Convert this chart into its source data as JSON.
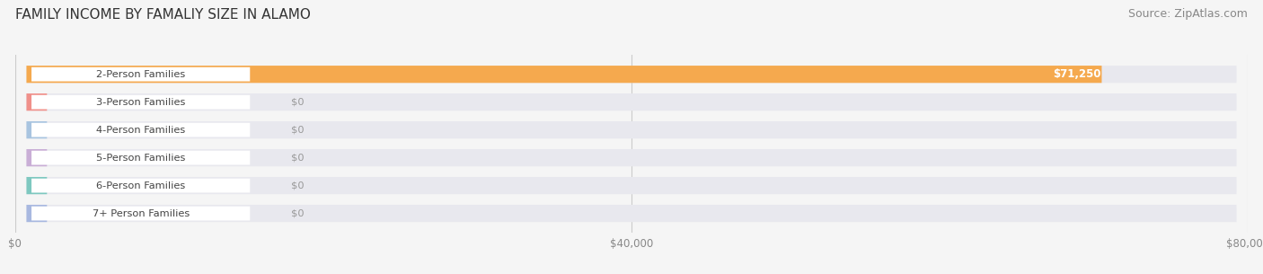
{
  "title": "FAMILY INCOME BY FAMALIY SIZE IN ALAMO",
  "source": "Source: ZipAtlas.com",
  "categories": [
    "2-Person Families",
    "3-Person Families",
    "4-Person Families",
    "5-Person Families",
    "6-Person Families",
    "7+ Person Families"
  ],
  "values": [
    71250,
    0,
    0,
    0,
    0,
    0
  ],
  "bar_colors": [
    "#f5a94e",
    "#f0908a",
    "#a8c4e0",
    "#c9aed6",
    "#7ec8c0",
    "#a8b8e0"
  ],
  "value_labels": [
    "$71,250",
    "$0",
    "$0",
    "$0",
    "$0",
    "$0"
  ],
  "xlim": [
    0,
    80000
  ],
  "xticks": [
    0,
    40000,
    80000
  ],
  "xtick_labels": [
    "$0",
    "$40,000",
    "$80,000"
  ],
  "bg_color": "#f5f5f5",
  "bar_bg_color": "#e8e8ee",
  "title_fontsize": 11,
  "source_fontsize": 9
}
